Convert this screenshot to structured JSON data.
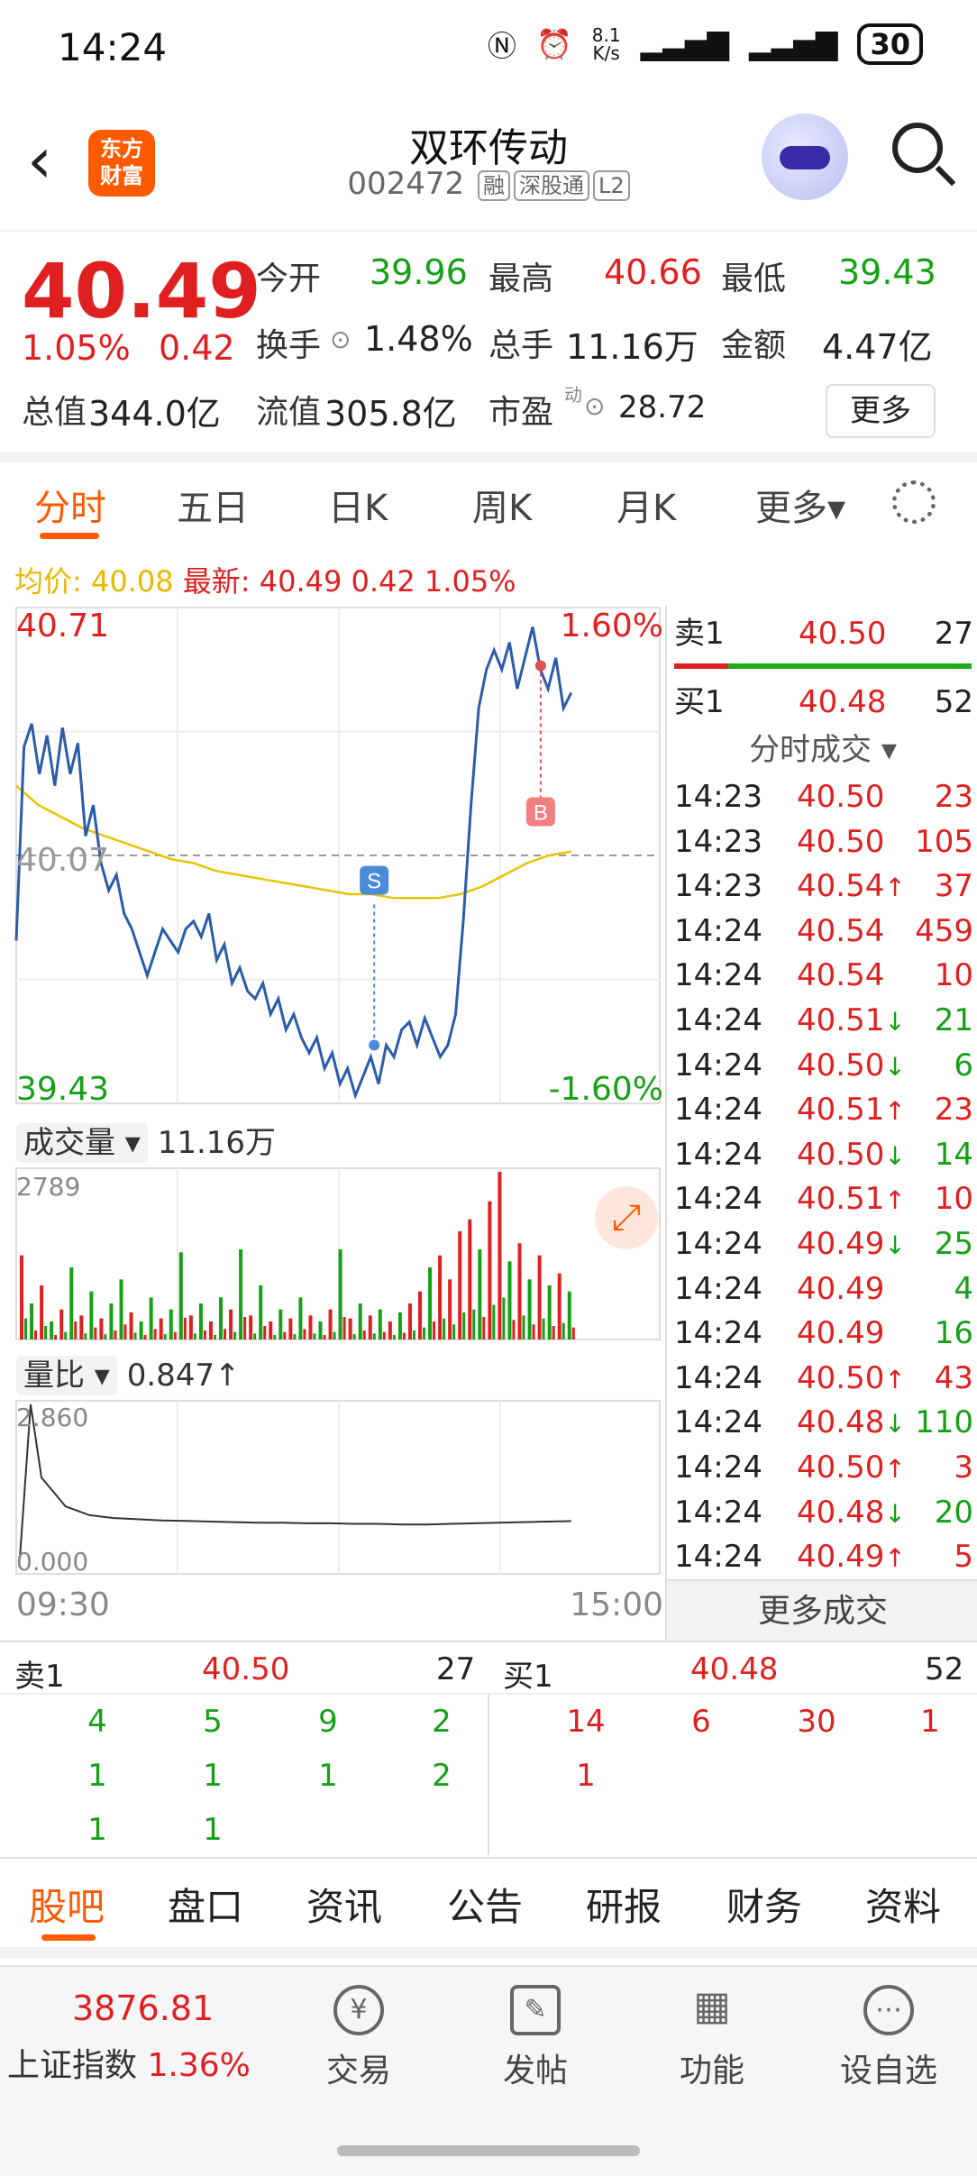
{
  "status": {
    "time": "14:24",
    "net_speed_top": "8.1",
    "net_speed_unit": "K/s",
    "battery": "30"
  },
  "header": {
    "logo_line1": "东方",
    "logo_line2": "财富",
    "title": "双环传动",
    "code": "002472",
    "tags": [
      "融",
      "深股通",
      "L2"
    ]
  },
  "quote": {
    "price": "40.49",
    "change_pct": "1.05%",
    "change_abs": "0.42",
    "open_label": "今开",
    "open": "39.96",
    "high_label": "最高",
    "high": "40.66",
    "low_label": "最低",
    "low": "39.43",
    "turnover_label": "换手",
    "turnover": "1.48%",
    "volume_label": "总手",
    "volume": "11.16万",
    "amount_label": "金额",
    "amount": "4.47亿",
    "mcap_label": "总值",
    "mcap": "344.0亿",
    "float_label": "流值",
    "float": "305.8亿",
    "pe_label": "市盈",
    "pe_sup": "动",
    "pe": "28.72",
    "more": "更多"
  },
  "tabs": {
    "items": [
      "分时",
      "五日",
      "日K",
      "周K",
      "月K",
      "更多▾"
    ]
  },
  "avgline": {
    "avg_label": "均价:",
    "avg": "40.08",
    "latest_label": "最新:",
    "latest": "40.49 0.42 1.05%"
  },
  "chart_data": {
    "type": "line",
    "y_max": "40.71",
    "y_min": "39.43",
    "y_mid": "40.07",
    "pct_max": "1.60%",
    "pct_min": "-1.60%",
    "ylim": [
      39.43,
      40.71
    ],
    "price": [
      39.85,
      40.35,
      40.41,
      40.28,
      40.38,
      40.25,
      40.4,
      40.28,
      40.36,
      40.12,
      40.2,
      40.05,
      39.98,
      40.02,
      39.92,
      39.88,
      39.82,
      39.76,
      39.82,
      39.88,
      39.85,
      39.82,
      39.88,
      39.9,
      39.86,
      39.92,
      39.8,
      39.84,
      39.74,
      39.78,
      39.72,
      39.7,
      39.74,
      39.66,
      39.7,
      39.62,
      39.66,
      39.6,
      39.56,
      39.6,
      39.52,
      39.56,
      39.48,
      39.52,
      39.45,
      39.5,
      39.55,
      39.48,
      39.58,
      39.55,
      39.62,
      39.64,
      39.58,
      39.65,
      39.6,
      39.55,
      39.58,
      39.66,
      39.9,
      40.2,
      40.45,
      40.55,
      40.6,
      40.55,
      40.62,
      40.5,
      40.58,
      40.66,
      40.55,
      40.5,
      40.58,
      40.45,
      40.49
    ],
    "avg": [
      40.25,
      40.2,
      40.17,
      40.14,
      40.12,
      40.1,
      40.08,
      40.06,
      40.05,
      40.03,
      40.02,
      40.01,
      40.0,
      39.99,
      39.98,
      39.97,
      39.97,
      39.96,
      39.96,
      39.96,
      39.97,
      39.99,
      40.02,
      40.05,
      40.07,
      40.08
    ],
    "markers": [
      {
        "label": "S",
        "price": 39.58
      },
      {
        "label": "B",
        "price": 40.56
      }
    ],
    "volume_label": "成交量 ▾",
    "volume_value": "11.16万",
    "vol_max": "2789",
    "volume": [
      {
        "v": 1400,
        "c": "r"
      },
      {
        "v": 600,
        "c": "g"
      },
      {
        "v": 900,
        "c": "r"
      },
      {
        "v": 300,
        "c": "g"
      },
      {
        "v": 500,
        "c": "r"
      },
      {
        "v": 1200,
        "c": "g"
      },
      {
        "v": 400,
        "c": "r"
      },
      {
        "v": 800,
        "c": "g"
      },
      {
        "v": 350,
        "c": "r"
      },
      {
        "v": 600,
        "c": "g"
      },
      {
        "v": 1000,
        "c": "g"
      },
      {
        "v": 450,
        "c": "r"
      },
      {
        "v": 300,
        "c": "g"
      },
      {
        "v": 700,
        "c": "g"
      },
      {
        "v": 350,
        "c": "r"
      },
      {
        "v": 500,
        "c": "g"
      },
      {
        "v": 1450,
        "c": "g"
      },
      {
        "v": 400,
        "c": "r"
      },
      {
        "v": 600,
        "c": "g"
      },
      {
        "v": 300,
        "c": "r"
      },
      {
        "v": 700,
        "c": "g"
      },
      {
        "v": 500,
        "c": "r"
      },
      {
        "v": 1500,
        "c": "g"
      },
      {
        "v": 400,
        "c": "r"
      },
      {
        "v": 900,
        "c": "g"
      },
      {
        "v": 300,
        "c": "r"
      },
      {
        "v": 500,
        "c": "g"
      },
      {
        "v": 350,
        "c": "r"
      },
      {
        "v": 700,
        "c": "g"
      },
      {
        "v": 400,
        "c": "r"
      },
      {
        "v": 300,
        "c": "g"
      },
      {
        "v": 500,
        "c": "r"
      },
      {
        "v": 1500,
        "c": "g"
      },
      {
        "v": 350,
        "c": "r"
      },
      {
        "v": 600,
        "c": "g"
      },
      {
        "v": 400,
        "c": "r"
      },
      {
        "v": 500,
        "c": "g"
      },
      {
        "v": 300,
        "c": "r"
      },
      {
        "v": 450,
        "c": "g"
      },
      {
        "v": 600,
        "c": "r"
      },
      {
        "v": 800,
        "c": "r"
      },
      {
        "v": 1200,
        "c": "g"
      },
      {
        "v": 1400,
        "c": "r"
      },
      {
        "v": 1000,
        "c": "r"
      },
      {
        "v": 1800,
        "c": "r"
      },
      {
        "v": 2000,
        "c": "r"
      },
      {
        "v": 1500,
        "c": "g"
      },
      {
        "v": 2300,
        "c": "r"
      },
      {
        "v": 2789,
        "c": "r"
      },
      {
        "v": 1300,
        "c": "g"
      },
      {
        "v": 1600,
        "c": "r"
      },
      {
        "v": 1000,
        "c": "g"
      },
      {
        "v": 1400,
        "c": "r"
      },
      {
        "v": 900,
        "c": "g"
      },
      {
        "v": 1100,
        "c": "r"
      },
      {
        "v": 800,
        "c": "g"
      }
    ],
    "ratio_label": "量比 ▾",
    "ratio_value": "0.847↑",
    "ratio_max": "2.860",
    "ratio_min": "0.000",
    "ratio": [
      0.2,
      2.86,
      1.6,
      1.1,
      0.95,
      0.9,
      0.88,
      0.86,
      0.85,
      0.84,
      0.83,
      0.82,
      0.82,
      0.81,
      0.81,
      0.8,
      0.8,
      0.79,
      0.79,
      0.8,
      0.81,
      0.82,
      0.83,
      0.84,
      0.847
    ],
    "x_start": "09:30",
    "x_end": "15:00"
  },
  "panel": {
    "sell_label": "卖1",
    "sell_price": "40.50",
    "sell_qty": "27",
    "buy_label": "买1",
    "buy_price": "40.48",
    "buy_qty": "52",
    "trades_title": "分时成交 ▾",
    "trades": [
      {
        "t": "14:23",
        "p": "40.50",
        "a": "",
        "q": "23",
        "qc": "red"
      },
      {
        "t": "14:23",
        "p": "40.50",
        "a": "",
        "q": "105",
        "qc": "red"
      },
      {
        "t": "14:23",
        "p": "40.54",
        "a": "↑",
        "q": "37",
        "qc": "red"
      },
      {
        "t": "14:24",
        "p": "40.54",
        "a": "",
        "q": "459",
        "qc": "red"
      },
      {
        "t": "14:24",
        "p": "40.54",
        "a": "",
        "q": "10",
        "qc": "red"
      },
      {
        "t": "14:24",
        "p": "40.51",
        "a": "↓",
        "q": "21",
        "qc": "green"
      },
      {
        "t": "14:24",
        "p": "40.50",
        "a": "↓",
        "q": "6",
        "qc": "green"
      },
      {
        "t": "14:24",
        "p": "40.51",
        "a": "↑",
        "q": "23",
        "qc": "red"
      },
      {
        "t": "14:24",
        "p": "40.50",
        "a": "↓",
        "q": "14",
        "qc": "green"
      },
      {
        "t": "14:24",
        "p": "40.51",
        "a": "↑",
        "q": "10",
        "qc": "red"
      },
      {
        "t": "14:24",
        "p": "40.49",
        "a": "↓",
        "q": "25",
        "qc": "green"
      },
      {
        "t": "14:24",
        "p": "40.49",
        "a": "",
        "q": "4",
        "qc": "green"
      },
      {
        "t": "14:24",
        "p": "40.49",
        "a": "",
        "q": "16",
        "qc": "green"
      },
      {
        "t": "14:24",
        "p": "40.50",
        "a": "↑",
        "q": "43",
        "qc": "red"
      },
      {
        "t": "14:24",
        "p": "40.48",
        "a": "↓",
        "q": "110",
        "qc": "green"
      },
      {
        "t": "14:24",
        "p": "40.50",
        "a": "↑",
        "q": "3",
        "qc": "red"
      },
      {
        "t": "14:24",
        "p": "40.48",
        "a": "↓",
        "q": "20",
        "qc": "green"
      },
      {
        "t": "14:24",
        "p": "40.49",
        "a": "↑",
        "q": "5",
        "qc": "red"
      }
    ],
    "more_trades": "更多成交"
  },
  "book": {
    "sell_label": "卖1",
    "sell_price": "40.50",
    "sell_qty": "27",
    "buy_label": "买1",
    "buy_price": "40.48",
    "buy_qty": "52",
    "sell_rows": [
      [
        "4",
        "5",
        "9",
        "2"
      ],
      [
        "1",
        "1",
        "1",
        "2"
      ],
      [
        "1",
        "1"
      ]
    ],
    "buy_rows": [
      [
        "14",
        "6",
        "30",
        "1"
      ],
      [
        "1"
      ]
    ]
  },
  "btabs": {
    "items": [
      "股吧",
      "盘口",
      "资讯",
      "公告",
      "研报",
      "财务",
      "资料"
    ]
  },
  "bar": {
    "index_value": "3876.81",
    "index_name": "上证指数",
    "index_pct": "1.36%",
    "actions": [
      "交易",
      "发帖",
      "功能",
      "设自选"
    ]
  },
  "colors": {
    "up": "#e02020",
    "down": "#16a016",
    "accent": "#ff5a00",
    "price_line": "#2a5caa",
    "avg_line": "#e8c400"
  }
}
